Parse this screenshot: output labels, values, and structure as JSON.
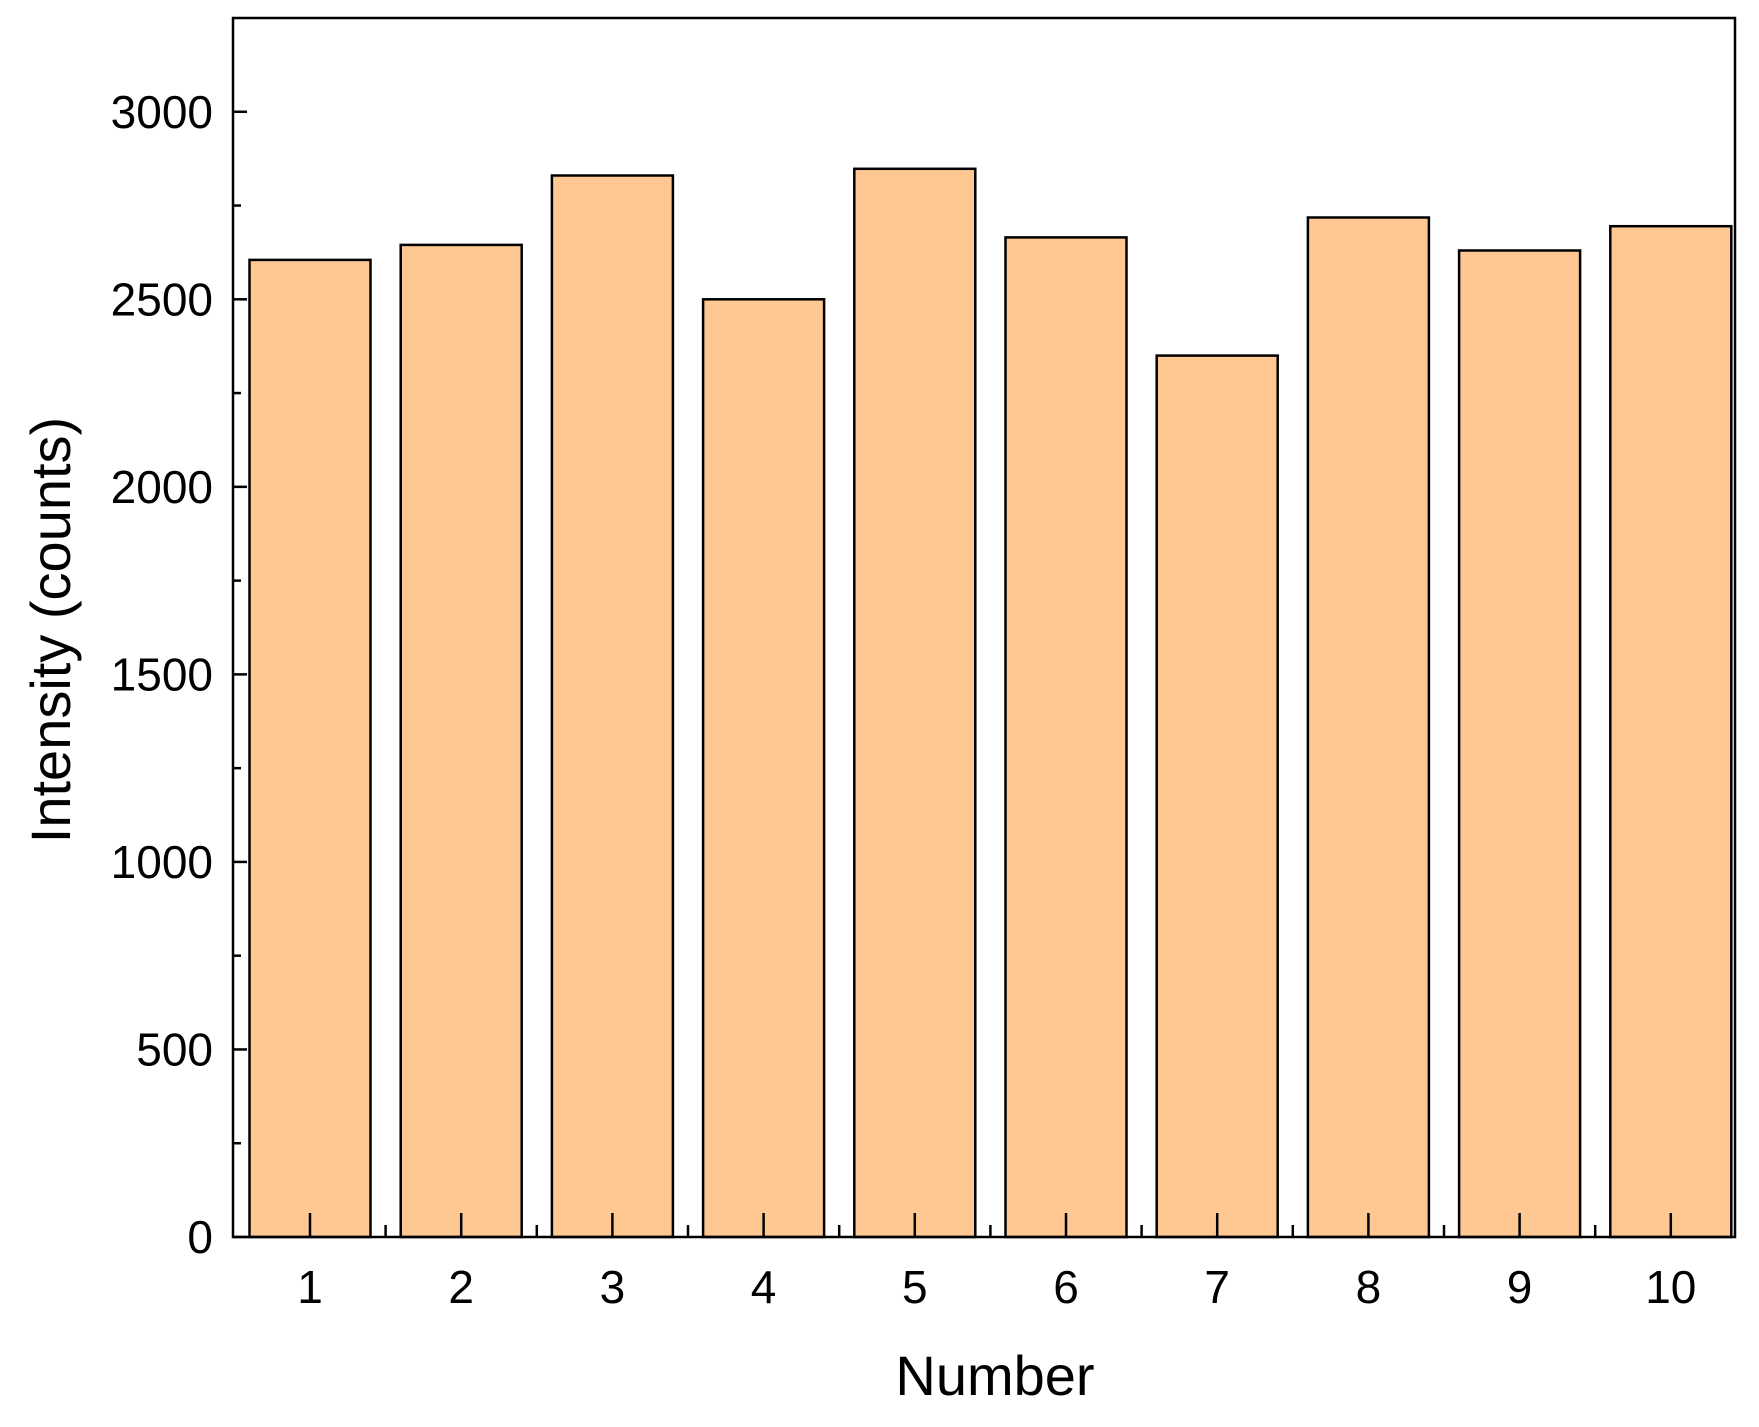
{
  "chart_data": {
    "type": "bar",
    "title": "",
    "xlabel": "Number",
    "ylabel": "Intensity (counts)",
    "categories": [
      "1",
      "2",
      "3",
      "4",
      "5",
      "6",
      "7",
      "8",
      "9",
      "10"
    ],
    "values": [
      2605,
      2645,
      2830,
      2500,
      2848,
      2665,
      2350,
      2718,
      2630,
      2695
    ],
    "ylim": [
      0,
      3250
    ],
    "yticks": [
      "0",
      "500",
      "1000",
      "1500",
      "2000",
      "2500",
      "3000"
    ],
    "grid": false,
    "legend": "none",
    "colors": {
      "bar_fill": "#FFC893",
      "bar_stroke": "#000000",
      "axis": "#000000",
      "background": "#FFFFFF"
    }
  }
}
